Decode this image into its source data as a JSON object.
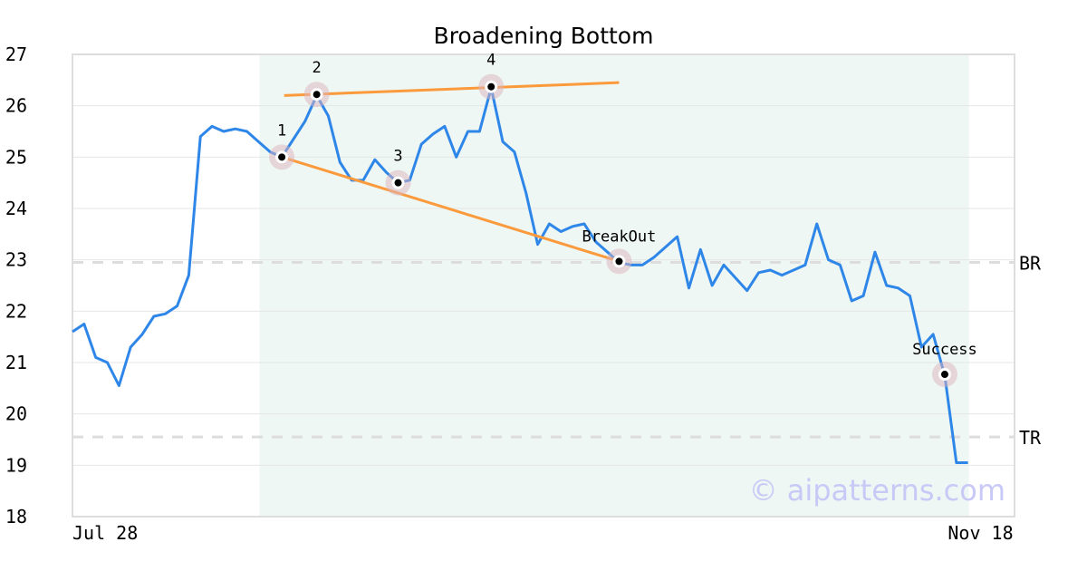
{
  "chart_data": {
    "type": "line",
    "title": "Broadening Bottom",
    "xlabel": "",
    "ylabel": "",
    "ylim": [
      18,
      27
    ],
    "yticks": [
      "18",
      "19",
      "20",
      "21",
      "22",
      "23",
      "24",
      "25",
      "26",
      "27"
    ],
    "xtick_labels": [
      {
        "index": 0,
        "label": "Jul 28"
      },
      {
        "index": 77,
        "label": "Nov 18"
      }
    ],
    "xlim": [
      0,
      81
    ],
    "grid": true,
    "series": [
      {
        "color": "#2e86e8",
        "values": [
          21.6,
          21.75,
          21.1,
          21.0,
          20.55,
          21.3,
          21.55,
          21.9,
          21.95,
          22.1,
          22.7,
          25.4,
          25.6,
          25.5,
          25.55,
          25.5,
          25.3,
          25.1,
          25.0,
          25.35,
          25.7,
          26.2,
          25.8,
          24.9,
          24.55,
          24.55,
          24.95,
          24.7,
          24.5,
          24.55,
          25.25,
          25.45,
          25.6,
          25.0,
          25.5,
          25.5,
          26.35,
          25.3,
          25.1,
          24.3,
          23.3,
          23.7,
          23.55,
          23.65,
          23.7,
          23.35,
          23.15,
          22.95,
          22.9,
          22.9,
          23.05,
          23.25,
          23.45,
          22.45,
          23.2,
          22.5,
          22.9,
          22.65,
          22.4,
          22.75,
          22.8,
          22.7,
          22.8,
          22.9,
          23.7,
          23.0,
          22.9,
          22.2,
          22.3,
          23.15,
          22.5,
          22.45,
          22.3,
          21.3,
          21.55,
          20.75,
          19.05,
          19.05
        ]
      }
    ],
    "pattern_region": {
      "start_index": 16,
      "end_index": 77,
      "color": "#eef7f3"
    },
    "trendlines": [
      {
        "color": "#fb9a3c",
        "from": [
          18.2,
          26.2
        ],
        "to": [
          47,
          26.45
        ]
      },
      {
        "color": "#fb9a3c",
        "from": [
          18,
          25.0
        ],
        "to": [
          47,
          22.97
        ]
      }
    ],
    "markers": [
      {
        "label": "1",
        "index": 18,
        "value": 25.0
      },
      {
        "label": "2",
        "index": 21,
        "value": 26.22
      },
      {
        "label": "3",
        "index": 28,
        "value": 24.5
      },
      {
        "label": "4",
        "index": 36,
        "value": 26.37
      },
      {
        "label": "BreakOut",
        "index": 47,
        "value": 22.97
      },
      {
        "label": "Success",
        "index": 75,
        "value": 20.77
      }
    ],
    "levels": [
      {
        "label": "BR",
        "value": 22.95
      },
      {
        "label": "TR",
        "value": 19.55
      }
    ],
    "watermark": "© aipatterns.com"
  }
}
